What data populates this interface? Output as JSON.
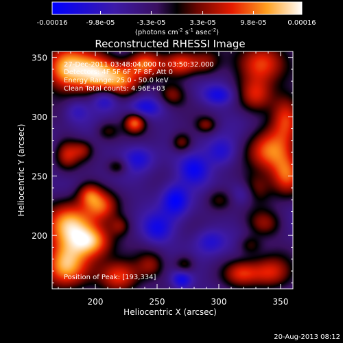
{
  "chart_data": {
    "type": "heatmap",
    "title": "Reconstructed RHESSI Image",
    "xlabel": "Heliocentric X (arcsec)",
    "ylabel": "Heliocentric Y (arcsec)",
    "xlim": [
      165,
      360
    ],
    "ylim": [
      155,
      355
    ],
    "x_ticks": [
      200,
      250,
      300,
      350
    ],
    "y_ticks": [
      200,
      250,
      300,
      350
    ],
    "colorbar": {
      "range": [
        -0.00016,
        0.00016
      ],
      "tick_values": [
        -0.00016,
        -9.8e-05,
        -3.3e-05,
        3.3e-05,
        9.8e-05,
        0.00016
      ],
      "tick_labels": [
        "-0.00016",
        "-9.8e-05",
        "-3.3e-05",
        "3.3e-05",
        "9.8e-05",
        "0.00016"
      ],
      "unit_label_parts": [
        "(photons cm",
        "-2",
        " s",
        "-1",
        " asec",
        "-2",
        ")"
      ]
    },
    "annotations": [
      "27-Dec-2011 03:48:04.000 to 03:50:32.000",
      "Detectors: 4F 5F 6F 7F 8F, Att 0",
      "Energy Range: 25.0 - 50.0 keV",
      "Clean    Total counts: 4.96E+03"
    ],
    "position_label": "Position of Peak: [193,334]",
    "peak": [
      193,
      334
    ],
    "timestamp": "20-Aug-2013 08:12",
    "blobs": [
      {
        "x": 175,
        "y": 340,
        "sx": 12,
        "sy": 14,
        "a": 1.0
      },
      {
        "x": 200,
        "y": 338,
        "sx": 14,
        "sy": 12,
        "a": 1.05
      },
      {
        "x": 222,
        "y": 330,
        "sx": 12,
        "sy": 10,
        "a": 0.7
      },
      {
        "x": 240,
        "y": 345,
        "sx": 10,
        "sy": 8,
        "a": 0.8
      },
      {
        "x": 270,
        "y": 345,
        "sx": 10,
        "sy": 8,
        "a": 0.75
      },
      {
        "x": 262,
        "y": 318,
        "sx": 8,
        "sy": 7,
        "a": 0.5
      },
      {
        "x": 290,
        "y": 345,
        "sx": 8,
        "sy": 8,
        "a": 0.45
      },
      {
        "x": 335,
        "y": 345,
        "sx": 14,
        "sy": 12,
        "a": 0.9
      },
      {
        "x": 330,
        "y": 318,
        "sx": 10,
        "sy": 10,
        "a": 0.55
      },
      {
        "x": 355,
        "y": 300,
        "sx": 9,
        "sy": 14,
        "a": 0.8
      },
      {
        "x": 340,
        "y": 270,
        "sx": 13,
        "sy": 13,
        "a": 0.85
      },
      {
        "x": 355,
        "y": 250,
        "sx": 9,
        "sy": 12,
        "a": 0.8
      },
      {
        "x": 330,
        "y": 240,
        "sx": 9,
        "sy": 9,
        "a": 0.45
      },
      {
        "x": 337,
        "y": 210,
        "sx": 10,
        "sy": 8,
        "a": 0.5
      },
      {
        "x": 300,
        "y": 230,
        "sx": 8,
        "sy": 7,
        "a": 0.45
      },
      {
        "x": 232,
        "y": 295,
        "sx": 6,
        "sy": 6,
        "a": 0.85
      },
      {
        "x": 210,
        "y": 288,
        "sx": 7,
        "sy": 6,
        "a": 0.4
      },
      {
        "x": 177,
        "y": 268,
        "sx": 7,
        "sy": 9,
        "a": 0.6
      },
      {
        "x": 190,
        "y": 272,
        "sx": 6,
        "sy": 6,
        "a": 0.4
      },
      {
        "x": 270,
        "y": 278,
        "sx": 6,
        "sy": 6,
        "a": 0.55
      },
      {
        "x": 218,
        "y": 258,
        "sx": 6,
        "sy": 5,
        "a": 0.45
      },
      {
        "x": 290,
        "y": 293,
        "sx": 6,
        "sy": 5,
        "a": 0.45
      },
      {
        "x": 180,
        "y": 210,
        "sx": 14,
        "sy": 14,
        "a": 1.0
      },
      {
        "x": 198,
        "y": 195,
        "sx": 12,
        "sy": 10,
        "a": 0.95
      },
      {
        "x": 205,
        "y": 225,
        "sx": 9,
        "sy": 9,
        "a": 0.65
      },
      {
        "x": 195,
        "y": 235,
        "sx": 7,
        "sy": 7,
        "a": 0.6
      },
      {
        "x": 220,
        "y": 208,
        "sx": 6,
        "sy": 6,
        "a": 0.4
      },
      {
        "x": 175,
        "y": 175,
        "sx": 13,
        "sy": 14,
        "a": 1.05
      },
      {
        "x": 220,
        "y": 165,
        "sx": 12,
        "sy": 10,
        "a": 0.85
      },
      {
        "x": 245,
        "y": 175,
        "sx": 8,
        "sy": 8,
        "a": 0.45
      },
      {
        "x": 272,
        "y": 175,
        "sx": 6,
        "sy": 6,
        "a": 0.5
      },
      {
        "x": 318,
        "y": 168,
        "sx": 10,
        "sy": 8,
        "a": 0.6
      },
      {
        "x": 342,
        "y": 168,
        "sx": 12,
        "sy": 10,
        "a": 0.75
      },
      {
        "x": 325,
        "y": 192,
        "sx": 7,
        "sy": 6,
        "a": 0.4
      },
      {
        "x": 280,
        "y": 255,
        "sx": 9,
        "sy": 9,
        "a": -0.6
      },
      {
        "x": 265,
        "y": 230,
        "sx": 8,
        "sy": 10,
        "a": -0.7
      },
      {
        "x": 208,
        "y": 315,
        "sx": 8,
        "sy": 7,
        "a": -0.6
      },
      {
        "x": 240,
        "y": 308,
        "sx": 10,
        "sy": 6,
        "a": -0.45
      },
      {
        "x": 300,
        "y": 318,
        "sx": 9,
        "sy": 6,
        "a": -0.5
      },
      {
        "x": 235,
        "y": 265,
        "sx": 9,
        "sy": 8,
        "a": -0.45
      },
      {
        "x": 302,
        "y": 270,
        "sx": 9,
        "sy": 9,
        "a": -0.5
      },
      {
        "x": 250,
        "y": 205,
        "sx": 9,
        "sy": 9,
        "a": -0.5
      },
      {
        "x": 293,
        "y": 195,
        "sx": 9,
        "sy": 8,
        "a": -0.45
      },
      {
        "x": 270,
        "y": 163,
        "sx": 6,
        "sy": 6,
        "a": -0.6
      },
      {
        "x": 320,
        "y": 235,
        "sx": 7,
        "sy": 7,
        "a": -0.35
      },
      {
        "x": 185,
        "y": 305,
        "sx": 7,
        "sy": 7,
        "a": -0.3
      }
    ]
  }
}
